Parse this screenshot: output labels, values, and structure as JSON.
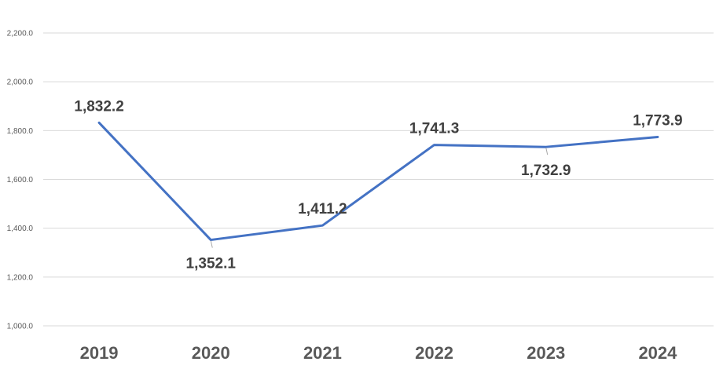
{
  "chart_data": {
    "type": "line",
    "title": "",
    "xlabel": "",
    "ylabel": "",
    "categories": [
      "2019",
      "2020",
      "2021",
      "2022",
      "2023",
      "2024"
    ],
    "series": [
      {
        "values": [
          1832.2,
          1352.1,
          1411.2,
          1741.3,
          1732.9,
          1773.9
        ],
        "labels": [
          "1,832.2",
          "1,352.1",
          "1,411.2",
          "1,741.3",
          "1,732.9",
          "1,773.9"
        ],
        "color": "#4472c4"
      }
    ],
    "ylim": [
      1000,
      2200
    ],
    "yticks": [
      1000,
      1200,
      1400,
      1600,
      1800,
      2000,
      2200
    ],
    "ytick_labels": [
      "1,000.0",
      "1,200.0",
      "1,400.0",
      "1,600.0",
      "1,800.0",
      "2,000.0",
      "2,200.0"
    ],
    "grid": true,
    "legend": "none"
  }
}
